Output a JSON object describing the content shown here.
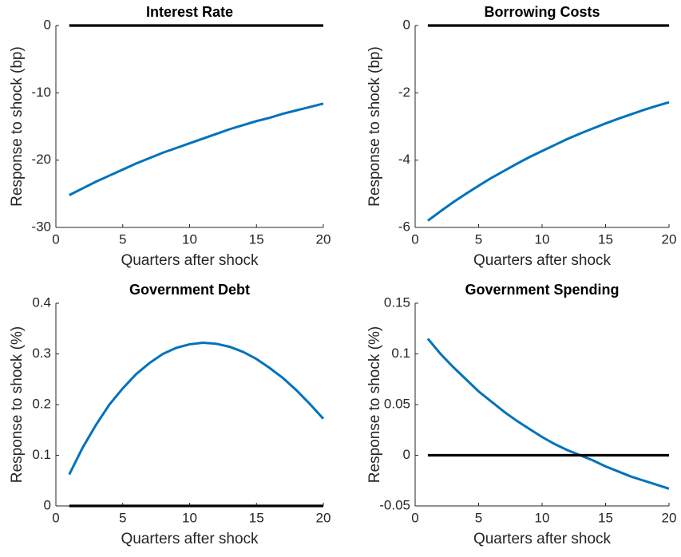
{
  "chart_data": [
    {
      "type": "line",
      "title": "Interest Rate",
      "xlabel": "Quarters after shock",
      "ylabel": "Response to shock (bp)",
      "x": [
        1,
        2,
        3,
        4,
        5,
        6,
        7,
        8,
        9,
        10,
        11,
        12,
        13,
        14,
        15,
        16,
        17,
        18,
        19,
        20
      ],
      "series": [
        {
          "color": "#0072bd",
          "values": [
            -25.2,
            -24.2,
            -23.2,
            -22.3,
            -21.4,
            -20.5,
            -19.7,
            -18.9,
            -18.2,
            -17.5,
            -16.8,
            -16.1,
            -15.4,
            -14.8,
            -14.2,
            -13.7,
            -13.1,
            -12.6,
            -12.1,
            -11.6
          ]
        },
        {
          "color": "#000000",
          "values": [
            0,
            0,
            0,
            0,
            0,
            0,
            0,
            0,
            0,
            0,
            0,
            0,
            0,
            0,
            0,
            0,
            0,
            0,
            0,
            0
          ]
        }
      ],
      "xlim": [
        0,
        20
      ],
      "xticks": [
        0,
        5,
        10,
        15,
        20
      ],
      "ylim": [
        -30,
        0
      ],
      "yticks": [
        -30,
        -20,
        -10,
        0
      ]
    },
    {
      "type": "line",
      "title": "Borrowing Costs",
      "xlabel": "Quarters after shock",
      "ylabel": "Response to shock (bp)",
      "x": [
        1,
        2,
        3,
        4,
        5,
        6,
        7,
        8,
        9,
        10,
        11,
        12,
        13,
        14,
        15,
        16,
        17,
        18,
        19,
        20
      ],
      "series": [
        {
          "color": "#0072bd",
          "values": [
            -5.8,
            -5.52,
            -5.25,
            -5.0,
            -4.76,
            -4.53,
            -4.32,
            -4.11,
            -3.91,
            -3.73,
            -3.55,
            -3.37,
            -3.21,
            -3.06,
            -2.91,
            -2.77,
            -2.64,
            -2.51,
            -2.39,
            -2.28
          ]
        },
        {
          "color": "#000000",
          "values": [
            0,
            0,
            0,
            0,
            0,
            0,
            0,
            0,
            0,
            0,
            0,
            0,
            0,
            0,
            0,
            0,
            0,
            0,
            0,
            0
          ]
        }
      ],
      "xlim": [
        0,
        20
      ],
      "xticks": [
        0,
        5,
        10,
        15,
        20
      ],
      "ylim": [
        -6,
        0
      ],
      "yticks": [
        -6,
        -4,
        -2,
        0
      ]
    },
    {
      "type": "line",
      "title": "Government Debt",
      "xlabel": "Quarters after shock",
      "ylabel": "Response to shock (%)",
      "x": [
        1,
        2,
        3,
        4,
        5,
        6,
        7,
        8,
        9,
        10,
        11,
        12,
        13,
        14,
        15,
        16,
        17,
        18,
        19,
        20
      ],
      "series": [
        {
          "color": "#0072bd",
          "values": [
            0.062,
            0.115,
            0.16,
            0.2,
            0.232,
            0.26,
            0.282,
            0.3,
            0.312,
            0.319,
            0.322,
            0.32,
            0.314,
            0.304,
            0.29,
            0.272,
            0.252,
            0.228,
            0.201,
            0.172
          ]
        },
        {
          "color": "#000000",
          "values": [
            0,
            0,
            0,
            0,
            0,
            0,
            0,
            0,
            0,
            0,
            0,
            0,
            0,
            0,
            0,
            0,
            0,
            0,
            0,
            0
          ]
        }
      ],
      "xlim": [
        0,
        20
      ],
      "xticks": [
        0,
        5,
        10,
        15,
        20
      ],
      "ylim": [
        0,
        0.4
      ],
      "yticks": [
        0,
        0.1,
        0.2,
        0.3,
        0.4
      ]
    },
    {
      "type": "line",
      "title": "Government Spending",
      "xlabel": "Quarters after shock",
      "ylabel": "Response to shock (%)",
      "x": [
        1,
        2,
        3,
        4,
        5,
        6,
        7,
        8,
        9,
        10,
        11,
        12,
        13,
        14,
        15,
        16,
        17,
        18,
        19,
        20
      ],
      "series": [
        {
          "color": "#0072bd",
          "values": [
            0.115,
            0.1,
            0.087,
            0.075,
            0.063,
            0.053,
            0.043,
            0.034,
            0.026,
            0.018,
            0.011,
            0.005,
            0.0,
            -0.005,
            -0.011,
            -0.016,
            -0.021,
            -0.025,
            -0.029,
            -0.033
          ]
        },
        {
          "color": "#000000",
          "values": [
            0,
            0,
            0,
            0,
            0,
            0,
            0,
            0,
            0,
            0,
            0,
            0,
            0,
            0,
            0,
            0,
            0,
            0,
            0,
            0
          ]
        }
      ],
      "xlim": [
        0,
        20
      ],
      "xticks": [
        0,
        5,
        10,
        15,
        20
      ],
      "ylim": [
        -0.05,
        0.15
      ],
      "yticks": [
        -0.05,
        0,
        0.05,
        0.1,
        0.15
      ]
    }
  ]
}
